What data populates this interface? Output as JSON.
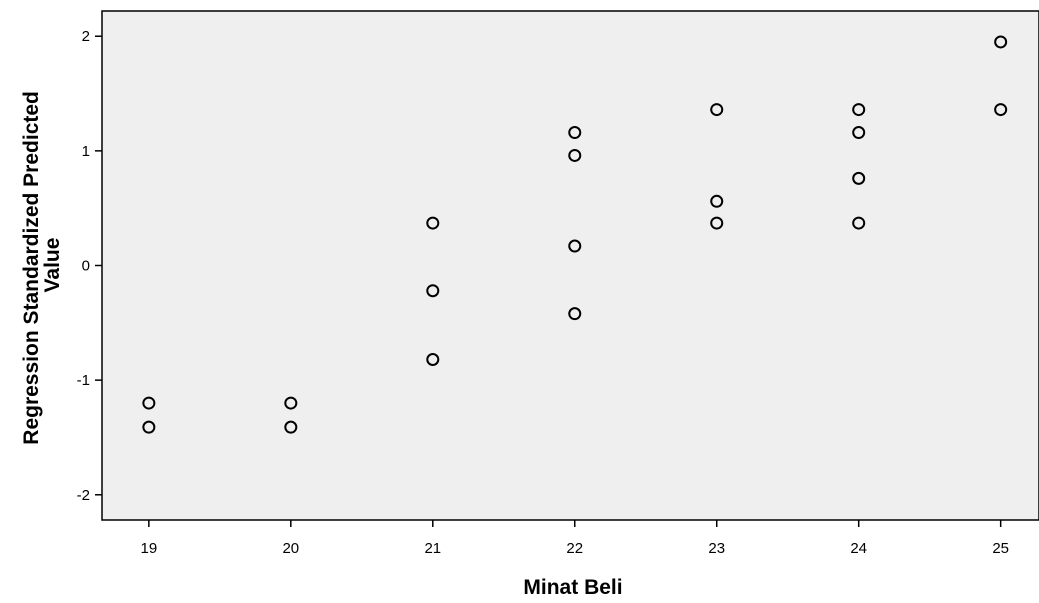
{
  "chart_data": {
    "type": "scatter",
    "title": "",
    "xlabel": "Minat Beli",
    "ylabel": [
      "Regression Standardized Predicted",
      "Value"
    ],
    "xlim": [
      18.67,
      25.27
    ],
    "ylim": [
      -2.22,
      2.22
    ],
    "x_ticks": [
      19,
      20,
      21,
      22,
      23,
      24,
      25
    ],
    "y_ticks": [
      -2,
      -1,
      0,
      1,
      2
    ],
    "x_tick_labels": [
      "19",
      "20",
      "21",
      "22",
      "23",
      "24",
      "25"
    ],
    "y_tick_labels": [
      "-2",
      "-1",
      "0",
      "1",
      "2"
    ],
    "grid": false,
    "background": "#efefef",
    "marker": "hollow-circle",
    "points": [
      {
        "x": 19,
        "y": -1.2
      },
      {
        "x": 19,
        "y": -1.41
      },
      {
        "x": 20,
        "y": -1.2
      },
      {
        "x": 20,
        "y": -1.41
      },
      {
        "x": 21,
        "y": 0.37
      },
      {
        "x": 21,
        "y": -0.22
      },
      {
        "x": 21,
        "y": -0.82
      },
      {
        "x": 22,
        "y": 1.16
      },
      {
        "x": 22,
        "y": 0.96
      },
      {
        "x": 22,
        "y": 0.17
      },
      {
        "x": 22,
        "y": -0.42
      },
      {
        "x": 23,
        "y": 1.36
      },
      {
        "x": 23,
        "y": 0.56
      },
      {
        "x": 23,
        "y": 0.37
      },
      {
        "x": 24,
        "y": 1.36
      },
      {
        "x": 24,
        "y": 1.16
      },
      {
        "x": 24,
        "y": 0.76
      },
      {
        "x": 24,
        "y": 0.37
      },
      {
        "x": 25,
        "y": 1.95
      },
      {
        "x": 25,
        "y": 1.36
      }
    ]
  }
}
